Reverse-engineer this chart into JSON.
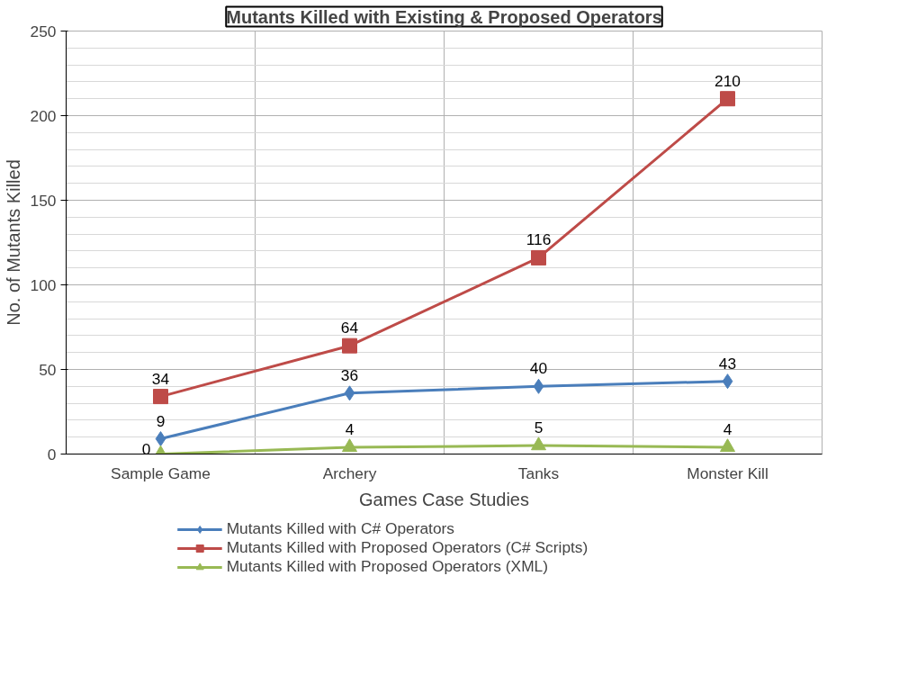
{
  "chart_data": {
    "type": "line",
    "title": "Mutants Killed with Existing & Proposed Operators",
    "xlabel": "Games Case Studies",
    "ylabel": "No. of Mutants Killed",
    "categories": [
      "Sample Game",
      "Archery",
      "Tanks",
      "Monster Kill"
    ],
    "series": [
      {
        "name": "Mutants Killed with C# Operators",
        "color": "#4a7ebb",
        "marker": "diamond",
        "values": [
          9,
          36,
          40,
          43
        ]
      },
      {
        "name": "Mutants Killed with Proposed Operators (C# Scripts)",
        "color": "#be4b48",
        "marker": "square",
        "values": [
          34,
          64,
          116,
          210
        ]
      },
      {
        "name": "Mutants Killed with Proposed Operators (XML)",
        "color": "#98b954",
        "marker": "triangle",
        "values": [
          0,
          4,
          5,
          4
        ]
      }
    ],
    "ylim": [
      0,
      250
    ],
    "yticks": [
      0,
      50,
      100,
      150,
      200,
      250
    ],
    "grid": true,
    "legend": "bottom",
    "data_labels": true,
    "line_style": "solid"
  }
}
